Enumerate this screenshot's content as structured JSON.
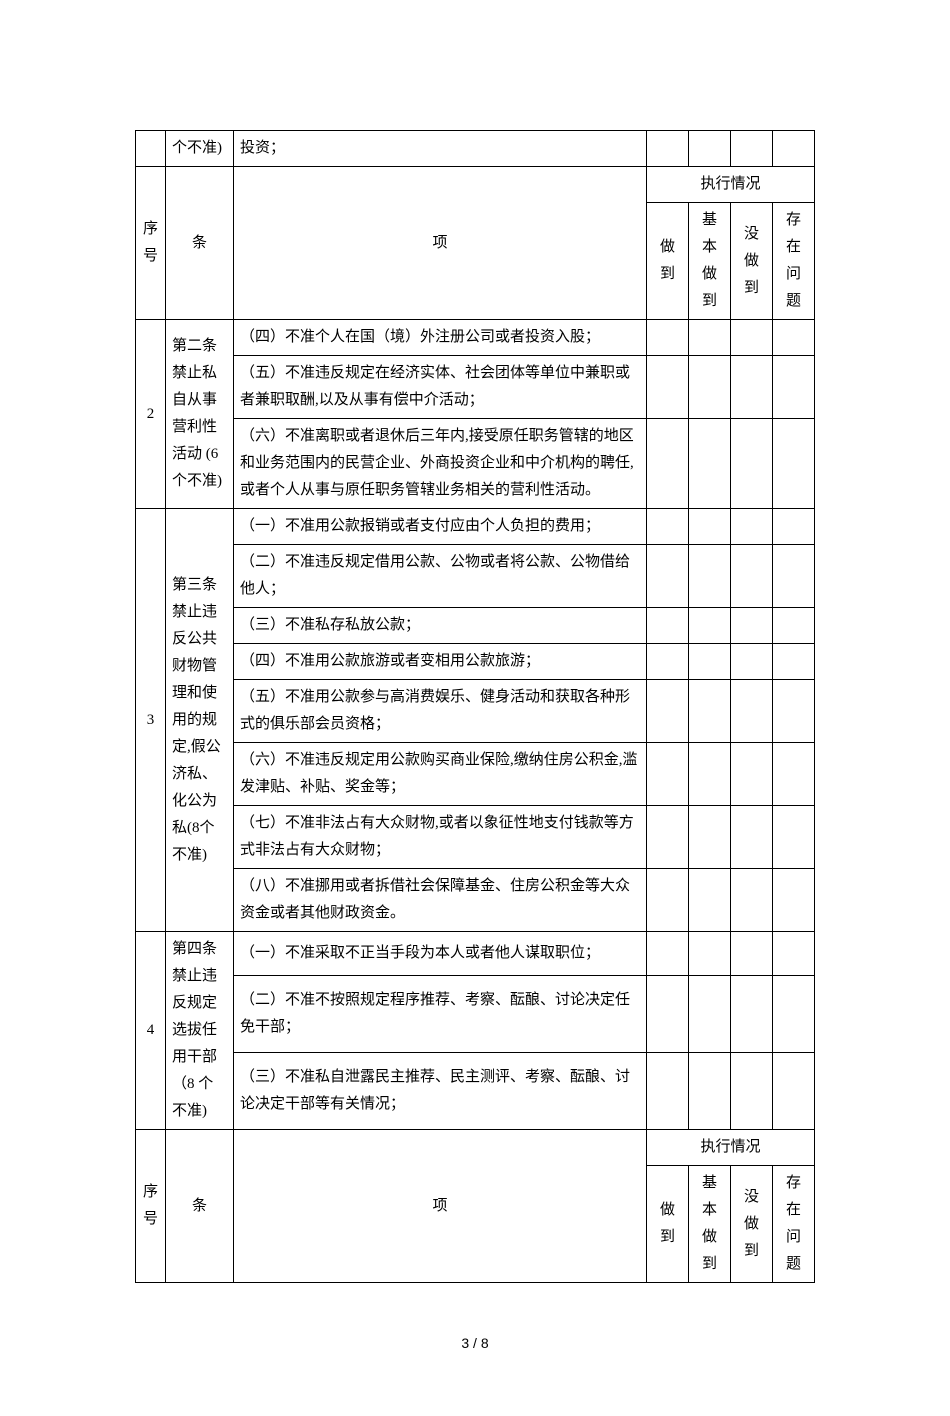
{
  "headers": {
    "seq": "序号",
    "article": "条",
    "item": "项",
    "status_group": "执行情况",
    "done": "做到",
    "mostly": "基本做到",
    "not_done": "没做到",
    "issues": "存在问题"
  },
  "rows": [
    {
      "num": "",
      "article": "个不准)",
      "item": "投资；"
    }
  ],
  "section2": {
    "num": "2",
    "article": "第二条禁止私自从事营利性活动 (6个不准)",
    "items": [
      "（四）不准个人在国（境）外注册公司或者投资入股；",
      "（五）不准违反规定在经济实体、社会团体等单位中兼职或者兼职取酬,以及从事有偿中介活动；",
      "（六）不准离职或者退休后三年内,接受原任职务管辖的地区和业务范围内的民营企业、外商投资企业和中介机构的聘任,或者个人从事与原任职务管辖业务相关的营利性活动。"
    ]
  },
  "section3": {
    "num": "3",
    "article": "第三条禁止违反公共财物管理和使用的规定,假公济私、化公为私(8个不准)",
    "items": [
      "（一）不准用公款报销或者支付应由个人负担的费用；",
      "（二）不准违反规定借用公款、公物或者将公款、公物借给他人；",
      "（三）不准私存私放公款；",
      "（四）不准用公款旅游或者变相用公款旅游；",
      "（五）不准用公款参与高消费娱乐、健身活动和获取各种形式的俱乐部会员资格；",
      "（六）不准违反规定用公款购买商业保险,缴纳住房公积金,滥发津贴、补贴、奖金等；",
      "（七）不准非法占有大众财物,或者以象征性地支付钱款等方式非法占有大众财物；",
      "（八）不准挪用或者拆借社会保障基金、住房公积金等大众资金或者其他财政资金。"
    ]
  },
  "section4": {
    "num": "4",
    "article": "第四条禁止违反规定选拔任用干部（8 个不准)",
    "items": [
      "（一）不准采取不正当手段为本人或者他人谋取职位；",
      "（二）不准不按照规定程序推荐、考察、酝酿、讨论决定任免干部；",
      "（三）不准私自泄露民主推荐、民主测评、考察、酝酿、讨论决定干部等有关情况；"
    ]
  },
  "page_number": "3 / 8"
}
